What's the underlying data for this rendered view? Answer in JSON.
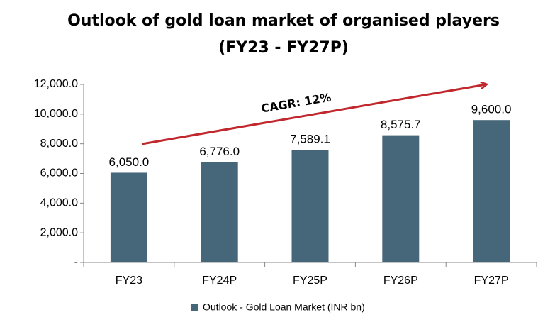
{
  "chart_data": {
    "type": "bar",
    "title": "Outlook of gold loan market of organised players",
    "subtitle": "(FY23 - FY27P)",
    "categories": [
      "FY23",
      "FY24P",
      "FY25P",
      "FY26P",
      "FY27P"
    ],
    "series": [
      {
        "name": "Outlook - Gold Loan Market (INR bn)",
        "color": "#46677a",
        "values": [
          6050.0,
          6776.0,
          7589.1,
          8575.7,
          9600.0
        ],
        "value_labels": [
          "6,050.0",
          "6,776.0",
          "7,589.1",
          "8,575.7",
          "9,600.0"
        ]
      }
    ],
    "ylim": [
      0,
      12000
    ],
    "yticks": [
      {
        "value": 0,
        "label": "-"
      },
      {
        "value": 2000,
        "label": "2,000.0"
      },
      {
        "value": 4000,
        "label": "4,000.0"
      },
      {
        "value": 6000,
        "label": "6,000.0"
      },
      {
        "value": 8000,
        "label": "8,000.0"
      },
      {
        "value": 10000,
        "label": "10,000.0"
      },
      {
        "value": 12000,
        "label": "12,000.0"
      }
    ],
    "annotation": "CAGR: 12%",
    "legend": "bottom",
    "grid": false
  }
}
